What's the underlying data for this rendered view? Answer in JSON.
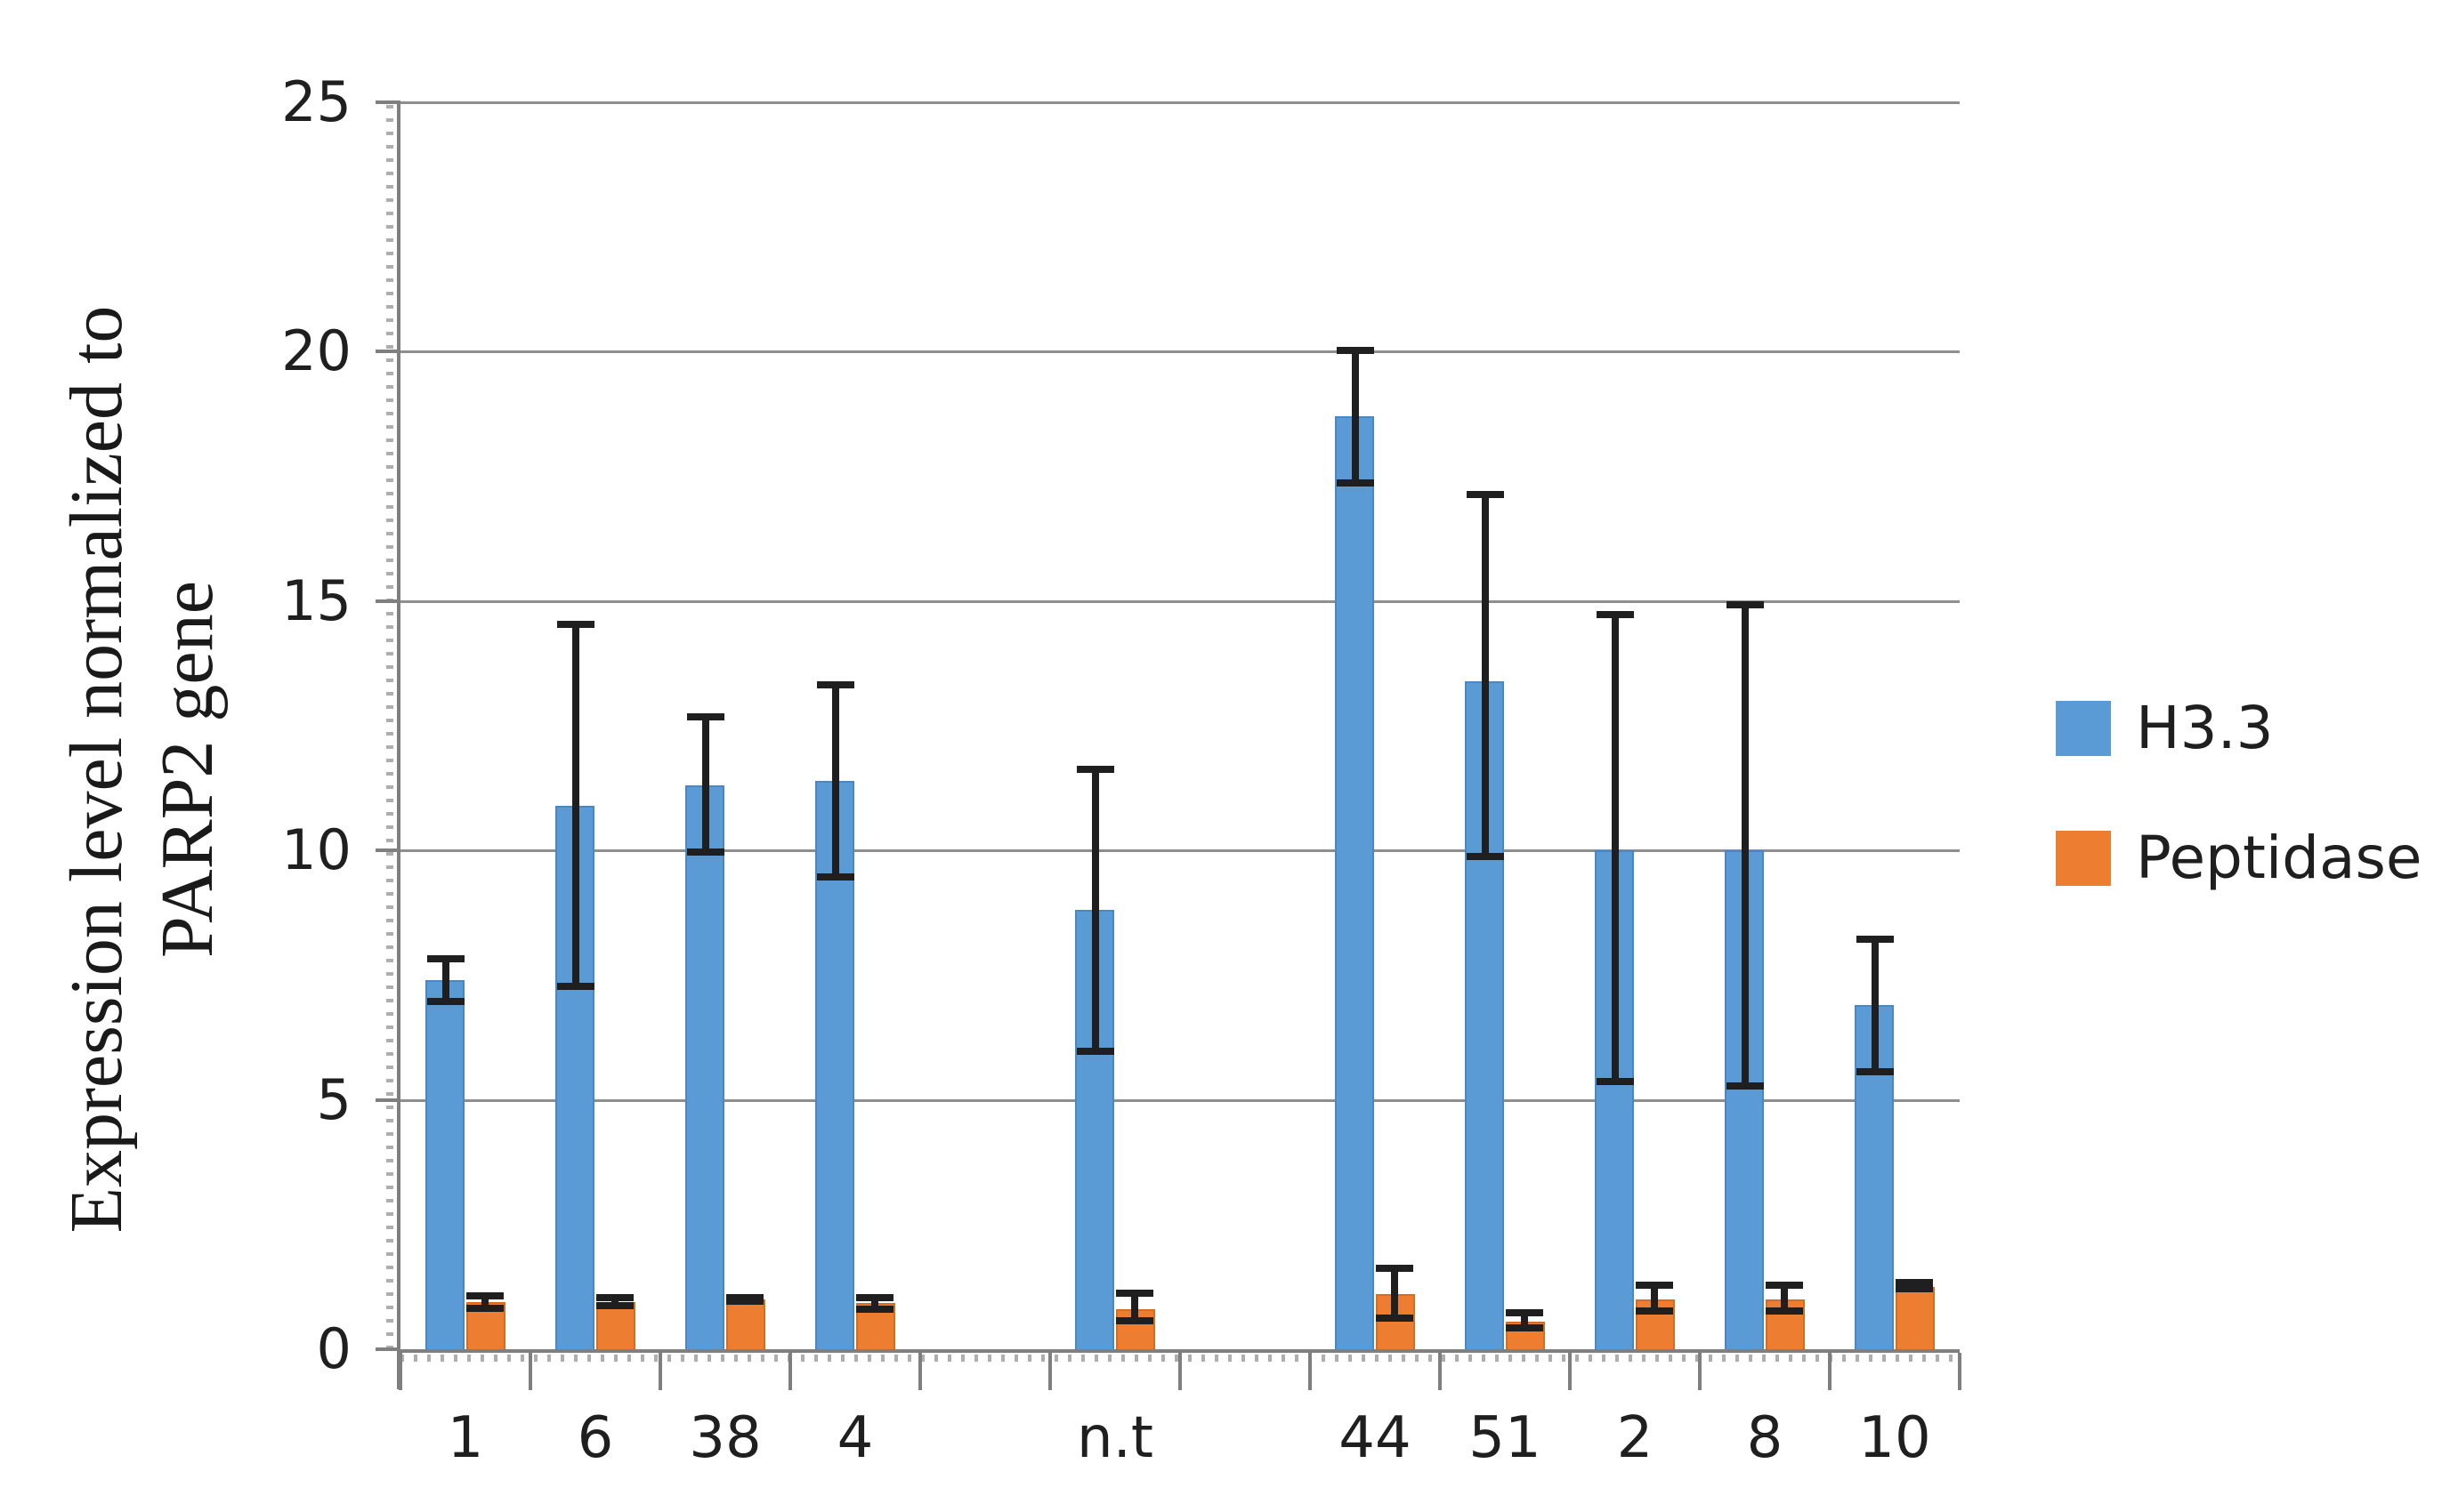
{
  "chart_data": {
    "type": "bar",
    "title": "",
    "ylabel_lines": [
      "Expression level normalized to",
      "PARP2 gene"
    ],
    "ylabel": "Expression level normalized to PARP2 gene",
    "ylim": [
      0,
      25
    ],
    "yticks": [
      25,
      20,
      15,
      10,
      5,
      0
    ],
    "grid": true,
    "legend_position": "right",
    "categories": [
      "1",
      "6",
      "38",
      "4",
      "n.t",
      "44",
      "51",
      "2",
      "8",
      "10"
    ],
    "slot_count": 12,
    "slots": [
      0,
      1,
      2,
      3,
      5,
      7,
      8,
      9,
      10,
      11
    ],
    "series": [
      {
        "name": "H3.3",
        "color": "#5b9bd5",
        "edge_color": "#4a88c4",
        "values": [
          7.4,
          10.9,
          11.3,
          11.4,
          8.8,
          18.7,
          13.4,
          10.0,
          10.0,
          6.9
        ],
        "err_plus": [
          0.5,
          3.7,
          1.45,
          2.0,
          2.9,
          1.4,
          3.8,
          4.8,
          5.0,
          1.4
        ],
        "err_minus": [
          0.5,
          3.7,
          1.4,
          2.0,
          2.9,
          1.4,
          3.6,
          4.7,
          4.8,
          1.4
        ]
      },
      {
        "name": "Peptidase",
        "color": "#ed7d31",
        "edge_color": "#d96b20",
        "values": [
          0.95,
          0.95,
          1.0,
          0.92,
          0.8,
          1.1,
          0.55,
          1.0,
          1.0,
          1.25
        ],
        "err_plus": [
          0.2,
          0.15,
          0.1,
          0.18,
          0.4,
          0.6,
          0.25,
          0.35,
          0.35,
          0.15
        ],
        "err_minus": [
          0.2,
          0.15,
          0.1,
          0.18,
          0.3,
          0.55,
          0.2,
          0.3,
          0.3,
          0.1
        ]
      }
    ],
    "error_bar_color": "#1f1f1f",
    "gridline_color": "#8e8e8e",
    "axis_color": "#7f7f7f",
    "text_color": "#1f1f1f",
    "background_color": "#ffffff"
  }
}
